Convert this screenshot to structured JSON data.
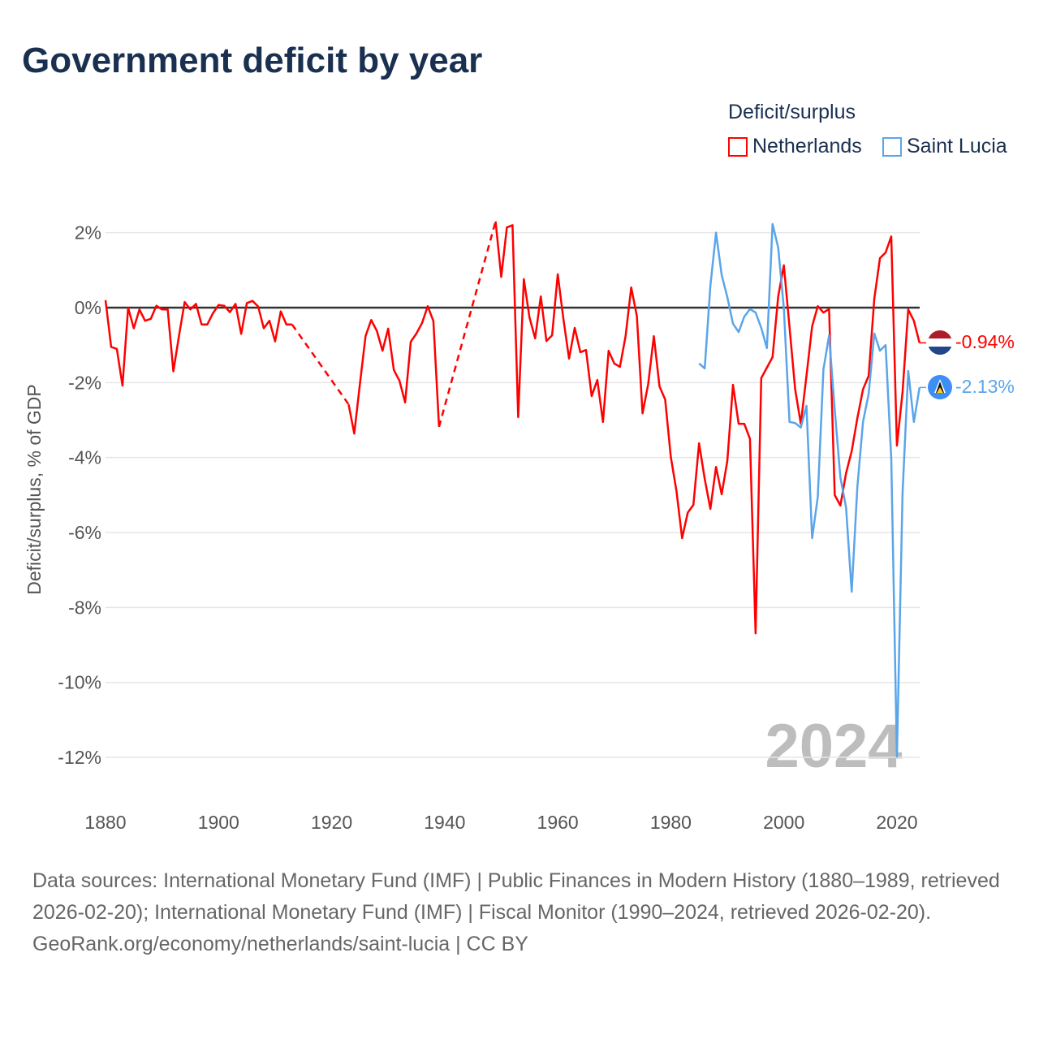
{
  "title": "Government deficit by year",
  "legend": {
    "title": "Deficit/surplus",
    "items": [
      {
        "label": "Netherlands",
        "color": "#ff0000"
      },
      {
        "label": "Saint Lucia",
        "color": "#5aa5ea"
      }
    ]
  },
  "year_watermark": "2024",
  "end_labels": {
    "netherlands": "-0.94%",
    "saint_lucia": "-2.13%"
  },
  "source_text": "Data sources: International Monetary Fund (IMF) | Public Finances in Modern History (1880–1989, retrieved 2026-02-20); International Monetary Fund (IMF) | Fiscal Monitor (1990–2024, retrieved 2026-02-20).",
  "credit_text": "GeoRank.org/economy/netherlands/saint-lucia | CC BY",
  "chart_data": {
    "type": "line",
    "title": "Government deficit by year",
    "xlabel": "",
    "ylabel": "Deficit/surplus, % of GDP",
    "xlim": [
      1880,
      2024
    ],
    "ylim": [
      -13,
      2.6
    ],
    "xticks": [
      1880,
      1900,
      1920,
      1940,
      1960,
      1980,
      2000,
      2020
    ],
    "xtick_labels": [
      "1880",
      "1900",
      "1920",
      "1940",
      "1960",
      "1980",
      "2000",
      "2020"
    ],
    "yticks": [
      2,
      0,
      -2,
      -4,
      -6,
      -8,
      -10,
      -12
    ],
    "ytick_labels": [
      "2%",
      "0%",
      "-2%",
      "-4%",
      "-6%",
      "-8%",
      "-10%",
      "-12%"
    ],
    "grid": true,
    "legend_position": "top-right",
    "series": [
      {
        "name": "Netherlands",
        "color": "#ff0000",
        "points": [
          [
            1880,
            0.2
          ],
          [
            1881,
            -1.05
          ],
          [
            1882,
            -1.1
          ],
          [
            1883,
            -2.08
          ],
          [
            1884,
            0
          ],
          [
            1885,
            -0.55
          ],
          [
            1886,
            -0.05
          ],
          [
            1887,
            -0.35
          ],
          [
            1888,
            -0.3
          ],
          [
            1889,
            0.05
          ],
          [
            1890,
            -0.05
          ],
          [
            1891,
            -0.05
          ],
          [
            1892,
            -1.7
          ],
          [
            1893,
            -0.75
          ],
          [
            1894,
            0.15
          ],
          [
            1895,
            -0.05
          ],
          [
            1896,
            0.1
          ],
          [
            1897,
            -0.45
          ],
          [
            1898,
            -0.45
          ],
          [
            1899,
            -0.15
          ],
          [
            1900,
            0.07
          ],
          [
            1901,
            0.05
          ],
          [
            1902,
            -0.12
          ],
          [
            1903,
            0.1
          ],
          [
            1904,
            -0.7
          ],
          [
            1905,
            0.12
          ],
          [
            1906,
            0.18
          ],
          [
            1907,
            0.03
          ],
          [
            1908,
            -0.55
          ],
          [
            1909,
            -0.35
          ],
          [
            1910,
            -0.9
          ],
          [
            1911,
            -0.1
          ],
          [
            1912,
            -0.45
          ],
          [
            1913,
            -0.45
          ],
          [
            1923,
            -2.58
          ],
          [
            1924,
            -3.36
          ],
          [
            1925,
            -2.04
          ],
          [
            1926,
            -0.76
          ],
          [
            1927,
            -0.33
          ],
          [
            1928,
            -0.62
          ],
          [
            1929,
            -1.15
          ],
          [
            1930,
            -0.56
          ],
          [
            1931,
            -1.66
          ],
          [
            1932,
            -1.95
          ],
          [
            1933,
            -2.53
          ],
          [
            1934,
            -0.91
          ],
          [
            1935,
            -0.69
          ],
          [
            1936,
            -0.41
          ],
          [
            1937,
            0.04
          ],
          [
            1938,
            -0.36
          ],
          [
            1939,
            -3.18
          ],
          [
            1949,
            2.3
          ],
          [
            1950,
            0.82
          ],
          [
            1951,
            2.14
          ],
          [
            1952,
            2.2
          ],
          [
            1953,
            -2.92
          ],
          [
            1954,
            0.76
          ],
          [
            1955,
            -0.26
          ],
          [
            1956,
            -0.82
          ],
          [
            1957,
            0.3
          ],
          [
            1958,
            -0.89
          ],
          [
            1959,
            -0.74
          ],
          [
            1960,
            0.89
          ],
          [
            1961,
            -0.3
          ],
          [
            1962,
            -1.36
          ],
          [
            1963,
            -0.54
          ],
          [
            1964,
            -1.19
          ],
          [
            1965,
            -1.13
          ],
          [
            1966,
            -2.36
          ],
          [
            1967,
            -1.93
          ],
          [
            1968,
            -3.05
          ],
          [
            1969,
            -1.15
          ],
          [
            1970,
            -1.49
          ],
          [
            1971,
            -1.58
          ],
          [
            1972,
            -0.76
          ],
          [
            1973,
            0.54
          ],
          [
            1974,
            -0.23
          ],
          [
            1975,
            -2.82
          ],
          [
            1976,
            -2.04
          ],
          [
            1977,
            -0.76
          ],
          [
            1978,
            -2.1
          ],
          [
            1979,
            -2.45
          ],
          [
            1980,
            -3.98
          ],
          [
            1981,
            -4.89
          ],
          [
            1982,
            -6.15
          ],
          [
            1983,
            -5.47
          ],
          [
            1984,
            -5.26
          ],
          [
            1985,
            -3.62
          ],
          [
            1986,
            -4.57
          ],
          [
            1987,
            -5.37
          ],
          [
            1988,
            -4.25
          ],
          [
            1989,
            -4.98
          ],
          [
            1990,
            -4.09
          ],
          [
            1991,
            -2.06
          ],
          [
            1992,
            -3.1
          ],
          [
            1993,
            -3.1
          ],
          [
            1994,
            -3.5
          ],
          [
            1995,
            -8.69
          ],
          [
            1996,
            -1.88
          ],
          [
            1997,
            -1.6
          ],
          [
            1998,
            -1.32
          ],
          [
            1999,
            0.3
          ],
          [
            2000,
            1.13
          ],
          [
            2001,
            -0.52
          ],
          [
            2002,
            -2.18
          ],
          [
            2003,
            -3.1
          ],
          [
            2004,
            -1.82
          ],
          [
            2005,
            -0.5
          ],
          [
            2006,
            0.04
          ],
          [
            2007,
            -0.13
          ],
          [
            2008,
            -0.04
          ],
          [
            2009,
            -5.0
          ],
          [
            2010,
            -5.28
          ],
          [
            2011,
            -4.42
          ],
          [
            2012,
            -3.83
          ],
          [
            2013,
            -2.95
          ],
          [
            2014,
            -2.18
          ],
          [
            2015,
            -1.82
          ],
          [
            2016,
            0.24
          ],
          [
            2017,
            1.32
          ],
          [
            2018,
            1.47
          ],
          [
            2019,
            1.9
          ],
          [
            2020,
            -3.68
          ],
          [
            2021,
            -2.25
          ],
          [
            2022,
            -0.05
          ],
          [
            2023,
            -0.35
          ],
          [
            2024,
            -0.94
          ]
        ]
      },
      {
        "name": "Saint Lucia",
        "color": "#5aa5ea",
        "points": [
          [
            1985,
            -1.49
          ],
          [
            1986,
            -1.62
          ],
          [
            1987,
            0.58
          ],
          [
            1988,
            2.0
          ],
          [
            1989,
            0.87
          ],
          [
            1990,
            0.28
          ],
          [
            1991,
            -0.43
          ],
          [
            1992,
            -0.65
          ],
          [
            1993,
            -0.24
          ],
          [
            1994,
            -0.04
          ],
          [
            1995,
            -0.13
          ],
          [
            1996,
            -0.54
          ],
          [
            1997,
            -1.08
          ],
          [
            1998,
            2.23
          ],
          [
            1999,
            1.6
          ],
          [
            2000,
            -0.02
          ],
          [
            2001,
            -3.05
          ],
          [
            2002,
            -3.08
          ],
          [
            2003,
            -3.2
          ],
          [
            2004,
            -2.62
          ],
          [
            2005,
            -6.15
          ],
          [
            2006,
            -5.05
          ],
          [
            2007,
            -1.65
          ],
          [
            2008,
            -0.74
          ],
          [
            2009,
            -2.73
          ],
          [
            2010,
            -4.53
          ],
          [
            2011,
            -5.33
          ],
          [
            2012,
            -7.58
          ],
          [
            2013,
            -4.79
          ],
          [
            2014,
            -3.05
          ],
          [
            2015,
            -2.3
          ],
          [
            2016,
            -0.69
          ],
          [
            2017,
            -1.15
          ],
          [
            2018,
            -1.0
          ],
          [
            2019,
            -4.03
          ],
          [
            2020,
            -11.98
          ],
          [
            2021,
            -4.94
          ],
          [
            2022,
            -1.69
          ],
          [
            2023,
            -3.05
          ],
          [
            2024,
            -2.13
          ]
        ]
      }
    ]
  }
}
